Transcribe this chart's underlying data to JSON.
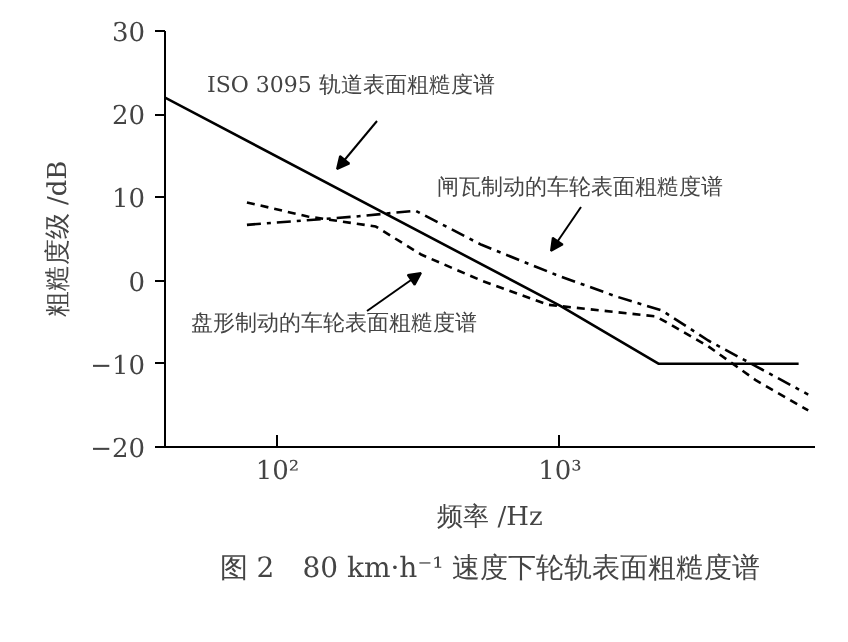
{
  "chart_data": {
    "type": "line",
    "title": "图 2　80 km·h⁻¹ 速度下轮轨表面粗糙度谱",
    "xlabel": "频率 /Hz",
    "ylabel": "粗糙度级 /dB",
    "log": "x",
    "xlim": [
      40,
      8000
    ],
    "xticks": [
      {
        "value": 100,
        "label": "10²"
      },
      {
        "value": 1000,
        "label": "10³"
      }
    ],
    "ylim": [
      -20,
      30
    ],
    "yticks": [
      -20,
      -10,
      0,
      10,
      20,
      30
    ],
    "grid": false,
    "marker": "none",
    "series": [
      {
        "color": "#000000",
        "line_style": "solid",
        "x": [
          40,
          1000,
          2240,
          7000
        ],
        "values": [
          22,
          -3,
          -10,
          -10
        ]
      },
      {
        "color": "#000000",
        "line_style": "dashdot",
        "x": [
          78,
          189,
          308,
          528,
          968,
          1580,
          2300,
          3350,
          4950,
          7570
        ],
        "values": [
          6.7,
          7.7,
          8.4,
          4.3,
          0.7,
          -1.9,
          -3.6,
          -7.2,
          -10.3,
          -13.7
        ]
      },
      {
        "color": "#000000",
        "line_style": "dashed",
        "x": [
          78,
          128,
          223,
          324,
          528,
          906,
          1410,
          2190,
          3350,
          4950,
          7570
        ],
        "values": [
          9.4,
          7.7,
          6.5,
          3.1,
          0,
          -2.9,
          -3.6,
          -4.3,
          -7.9,
          -12,
          -15.6
        ]
      }
    ],
    "annotations": [
      "ISO 3095 轨道表面粗糙度谱",
      "闸瓦制动的车轮表面粗糙度谱",
      "盘形制动的车轮表面粗糙度谱"
    ]
  }
}
